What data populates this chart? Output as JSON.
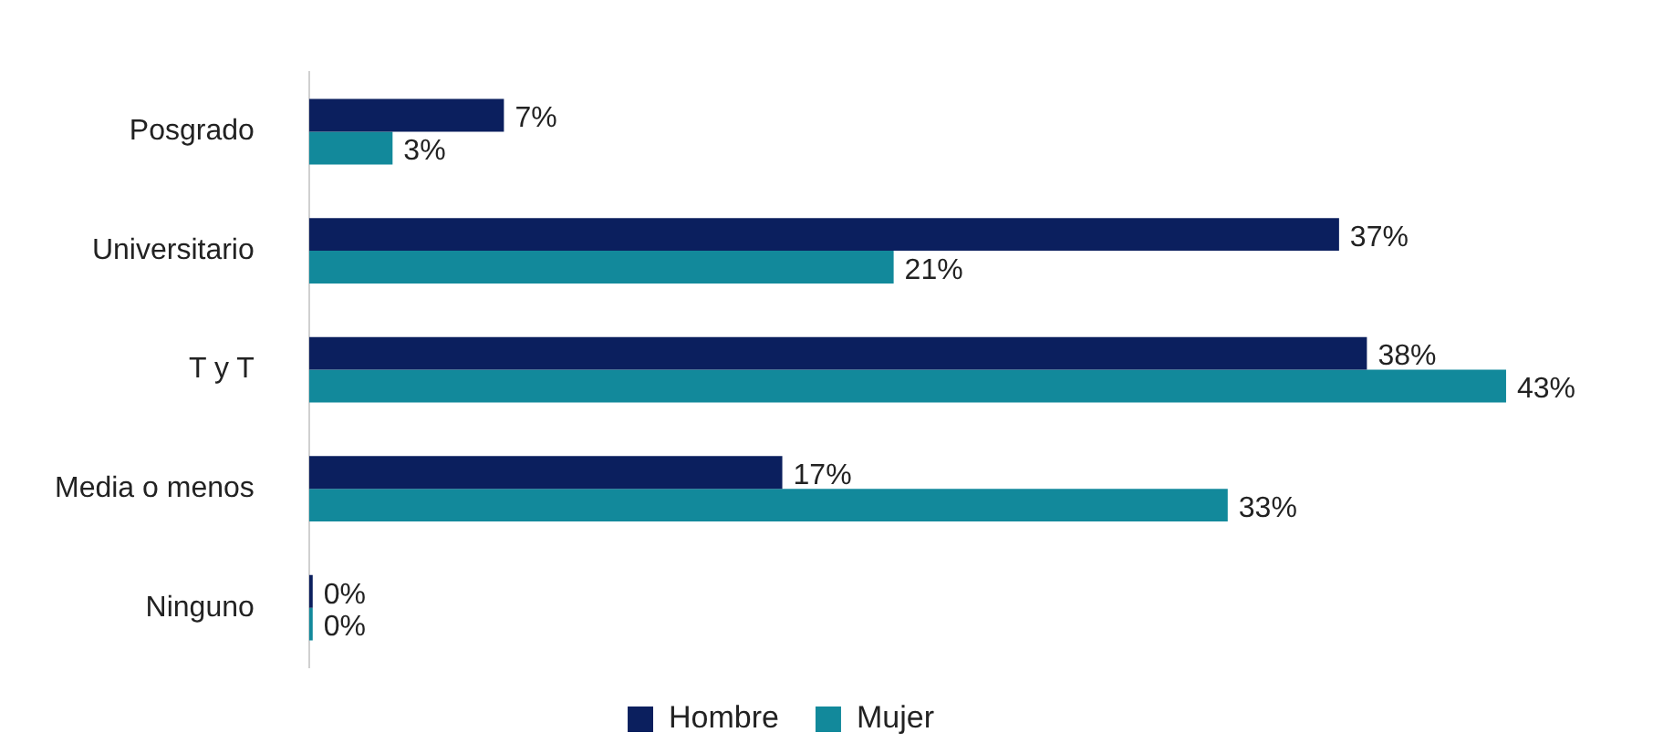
{
  "chart_data": {
    "type": "bar",
    "orientation": "horizontal",
    "categories": [
      "Posgrado",
      "Universitario",
      "T y T",
      "Media o menos",
      "Ninguno"
    ],
    "series": [
      {
        "name": "Hombre",
        "color": "#0b1f5e",
        "values": [
          7,
          37,
          38,
          17,
          0
        ],
        "value_labels": [
          "7%",
          "37%",
          "38%",
          "17%",
          "0%"
        ]
      },
      {
        "name": "Mujer",
        "color": "#12899b",
        "values": [
          3,
          21,
          43,
          33,
          0
        ],
        "value_labels": [
          "3%",
          "21%",
          "43%",
          "33%",
          "0%"
        ]
      }
    ],
    "legend": "bottom",
    "tick_labels": "y"
  }
}
